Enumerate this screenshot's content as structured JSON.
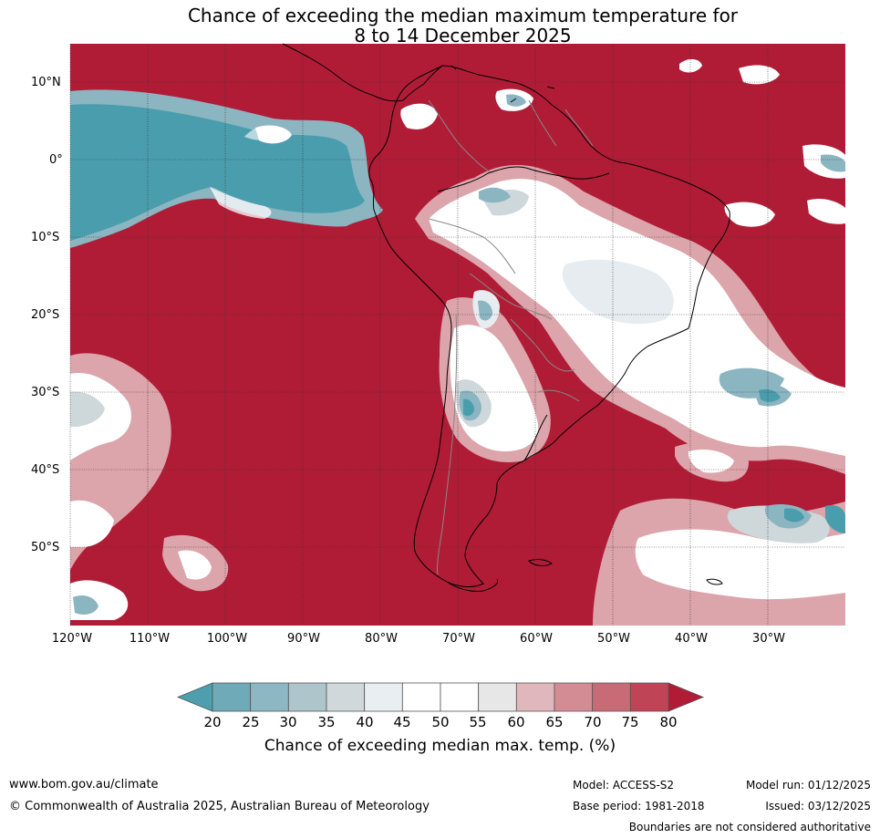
{
  "title": {
    "line1": "Chance of exceeding the median maximum temperature for",
    "line2": "8 to 14 December 2025"
  },
  "map": {
    "lat_labels": [
      "10°N",
      "0°",
      "10°S",
      "20°S",
      "30°S",
      "40°S",
      "50°S"
    ],
    "lon_labels": [
      "120°W",
      "110°W",
      "100°W",
      "90°W",
      "80°W",
      "70°W",
      "60°W",
      "50°W",
      "40°W",
      "30°W"
    ],
    "colors": {
      "very_high": "#b01c36",
      "high_75": "#c44a56",
      "high_70": "#cf6f7a",
      "high_65": "#dca4ab",
      "neutral": "#ffffff",
      "low_40": "#e6ecef",
      "low_35": "#ced7da",
      "low_25": "#8bb5c1",
      "very_low": "#4a9dad"
    }
  },
  "colorbar": {
    "ticks": [
      "20",
      "25",
      "30",
      "35",
      "40",
      "45",
      "50",
      "55",
      "60",
      "65",
      "70",
      "75",
      "80"
    ],
    "colors": [
      "#4d9fae",
      "#6eaab7",
      "#8cb7c3",
      "#adc5cb",
      "#d0d8db",
      "#e8eef1",
      "#ffffff",
      "#ffffff",
      "#e7e7e7",
      "#dfb7bd",
      "#d48c94",
      "#c86b76",
      "#bf4456",
      "#b01c36"
    ],
    "title": "Chance of exceeding median max. temp. (%)"
  },
  "footer": {
    "website": "www.bom.gov.au/climate",
    "copyright": "© Commonwealth of Australia 2025, Australian Bureau of Meteorology",
    "model": "Model: ACCESS-S2",
    "base_period": "Base period: 1981-2018",
    "model_run": "Model run: 01/12/2025",
    "issued": "Issued: 03/12/2025",
    "disclaimer": "Boundaries are not considered authoritative"
  }
}
